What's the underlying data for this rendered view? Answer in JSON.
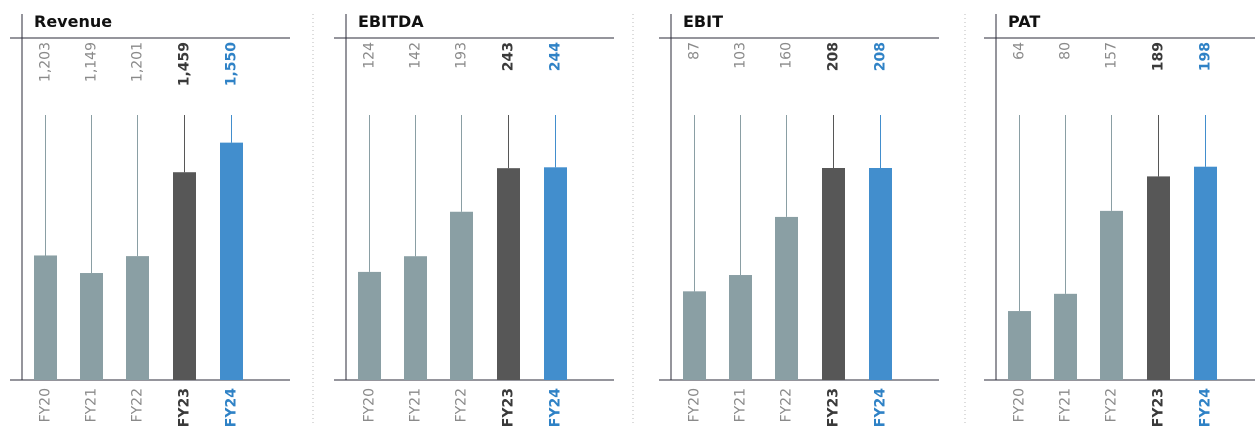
{
  "colors": {
    "past": "#8a9fa4",
    "prior_year": "#575757",
    "current_year": "#428ecd",
    "axis": "#2b2b3a",
    "muted_text": "#8a8a8a",
    "dark_text": "#3a3a3a",
    "blue_text": "#2f82c6",
    "separator": "#bbbbbb"
  },
  "chart_data": [
    {
      "type": "bar",
      "title": "Revenue",
      "categories": [
        "FY20",
        "FY21",
        "FY22",
        "FY23",
        "FY24"
      ],
      "values": [
        1203,
        1149,
        1201,
        1459,
        1550
      ],
      "value_labels": [
        "1,203",
        "1,149",
        "1,201",
        "1,459",
        "1,550"
      ],
      "ylim": [
        820,
        1635
      ]
    },
    {
      "type": "bar",
      "title": "EBITDA",
      "categories": [
        "FY20",
        "FY21",
        "FY22",
        "FY23",
        "FY24"
      ],
      "values": [
        124,
        142,
        193,
        243,
        244
      ],
      "value_labels": [
        "124",
        "142",
        "193",
        "243",
        "244"
      ],
      "ylim": [
        0,
        304
      ]
    },
    {
      "type": "bar",
      "title": "EBIT",
      "categories": [
        "FY20",
        "FY21",
        "FY22",
        "FY23",
        "FY24"
      ],
      "values": [
        87,
        103,
        160,
        208,
        208
      ],
      "value_labels": [
        "87",
        "103",
        "160",
        "208",
        "208"
      ],
      "ylim": [
        0,
        260
      ]
    },
    {
      "type": "bar",
      "title": "PAT",
      "categories": [
        "FY20",
        "FY21",
        "FY22",
        "FY23",
        "FY24"
      ],
      "values": [
        64,
        80,
        157,
        189,
        198
      ],
      "value_labels": [
        "64",
        "80",
        "157",
        "189",
        "198"
      ],
      "ylim": [
        0,
        246
      ]
    }
  ]
}
